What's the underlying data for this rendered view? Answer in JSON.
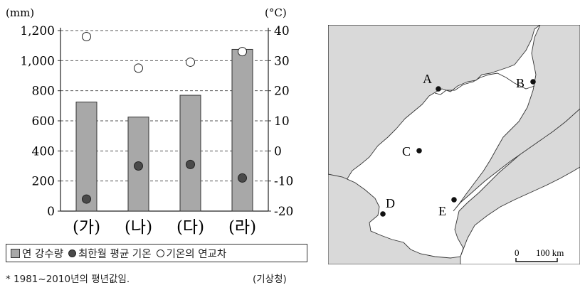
{
  "chart_data": {
    "type": "bar",
    "categories": [
      "(가)",
      "(나)",
      "(다)",
      "(라)"
    ],
    "series": [
      {
        "name": "연 강수량",
        "type": "bar",
        "axis": "left",
        "values": [
          725,
          625,
          770,
          1075
        ],
        "color": "#a8a8a8"
      },
      {
        "name": "최한월 평균 기온",
        "type": "scatter",
        "axis": "right",
        "values": [
          -16,
          -5,
          -4.5,
          -9
        ],
        "color": "#4a4a4a"
      },
      {
        "name": "기온의 연교차",
        "type": "scatter",
        "axis": "right",
        "values": [
          38,
          27.5,
          29.5,
          33
        ],
        "color": "#ffffff"
      }
    ],
    "left_unit": "(mm)",
    "right_unit": "(°C)",
    "ylim_left": [
      0,
      1200
    ],
    "ylim_right": [
      -20,
      40
    ],
    "left_ticks": [
      "0",
      "200",
      "400",
      "600",
      "800",
      "1,000",
      "1,200"
    ],
    "right_ticks": [
      "-20",
      "-10",
      "0",
      "10",
      "20",
      "30",
      "40"
    ],
    "grid": "dashed horizontal"
  },
  "legend": {
    "precip": "연 강수량",
    "min_temp": "최한월 평균 기온",
    "range": "기온의 연교차"
  },
  "footnote": "* 1981~2010년의 평년값임.",
  "source": "(기상청)",
  "map": {
    "points": [
      {
        "label": "A"
      },
      {
        "label": "B"
      },
      {
        "label": "C"
      },
      {
        "label": "D"
      },
      {
        "label": "E"
      }
    ],
    "scale_zero": "0",
    "scale_label": "100 km"
  }
}
